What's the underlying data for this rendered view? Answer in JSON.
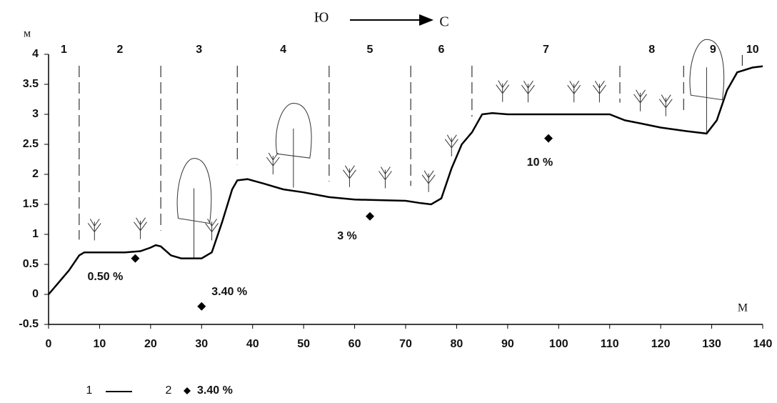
{
  "chart_data": {
    "type": "line",
    "direction_from": "Ю",
    "direction_to": "С",
    "y_label": "м",
    "x_label": "М",
    "xlim": [
      0,
      140
    ],
    "xticks": [
      0,
      10,
      20,
      30,
      40,
      50,
      60,
      70,
      80,
      90,
      100,
      110,
      120,
      130,
      140
    ],
    "ylim": [
      -0.5,
      4
    ],
    "yticks": [
      -0.5,
      0,
      0.5,
      1,
      1.5,
      2,
      2.5,
      3,
      3.5,
      4
    ],
    "zones": [
      "1",
      "2",
      "3",
      "4",
      "5",
      "6",
      "7",
      "8",
      "9",
      "10"
    ],
    "zone_boundaries": [
      6,
      22,
      37,
      55,
      71,
      83,
      112,
      124.5,
      136
    ],
    "series": [
      {
        "name": "1",
        "color": "#000000",
        "x": [
          0,
          2,
          4,
          6,
          7,
          10,
          15,
          18,
          20,
          21,
          22,
          24,
          26,
          30,
          32,
          34,
          36,
          37,
          39,
          42,
          46,
          50,
          55,
          60,
          65,
          70,
          73,
          75,
          77,
          79,
          81,
          83,
          85,
          87,
          90,
          100,
          110,
          113,
          116,
          120,
          125,
          129,
          131,
          133,
          135,
          138,
          140
        ],
        "values": [
          0,
          0.2,
          0.4,
          0.65,
          0.7,
          0.7,
          0.7,
          0.72,
          0.78,
          0.82,
          0.8,
          0.65,
          0.6,
          0.6,
          0.7,
          1.2,
          1.75,
          1.9,
          1.92,
          1.85,
          1.75,
          1.7,
          1.62,
          1.58,
          1.57,
          1.56,
          1.52,
          1.5,
          1.6,
          2.1,
          2.5,
          2.7,
          3.0,
          3.02,
          3.0,
          3.0,
          3.0,
          2.9,
          2.85,
          2.78,
          2.72,
          2.68,
          2.9,
          3.4,
          3.7,
          3.78,
          3.8
        ]
      },
      {
        "name": "2",
        "type": "scatter",
        "color": "#000000",
        "x": [
          17,
          30,
          63,
          98
        ],
        "values": [
          0.6,
          -0.2,
          1.3,
          2.6
        ],
        "labels": [
          "0.50 %",
          "3.40 %",
          "3 %",
          "10 %"
        ]
      }
    ],
    "legend_sample_label": "3.40 %"
  }
}
